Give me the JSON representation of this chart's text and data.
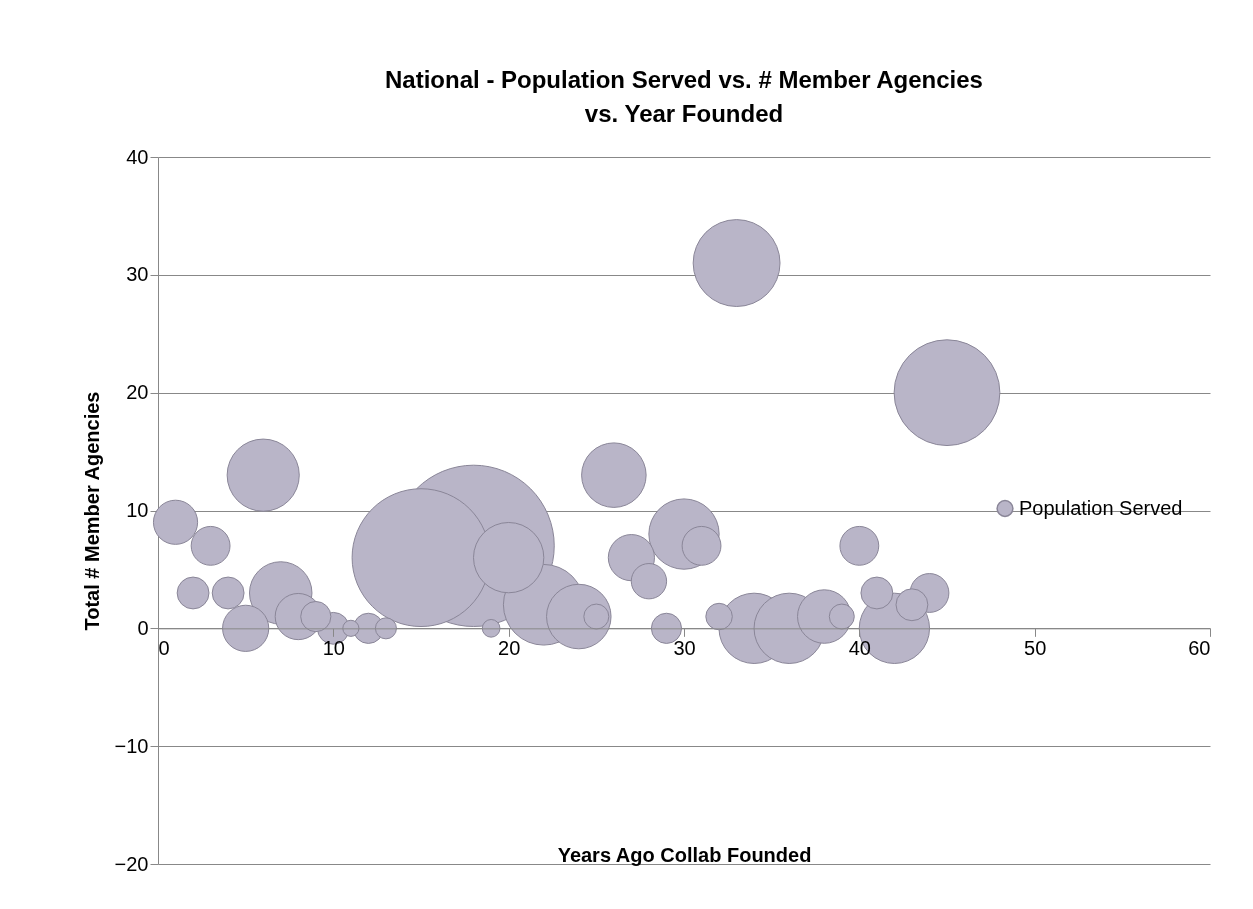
{
  "chart_data": {
    "type": "bubble",
    "title": "National - Population Served vs. # Member Agencies vs. Year Founded",
    "xlabel": "Years Ago Collab Founded",
    "ylabel": "Total # Member Agencies",
    "x": [
      1,
      3,
      2,
      4,
      5,
      6,
      7,
      8,
      9,
      10,
      11,
      12,
      13,
      15,
      18,
      19,
      20,
      22,
      24,
      25,
      26,
      27,
      28,
      29,
      30,
      31,
      32,
      33,
      34,
      36,
      38,
      39,
      40,
      41,
      42,
      43,
      44,
      45
    ],
    "series": [
      {
        "name": "Population Served",
        "color": "#b9b5c8",
        "values": [
          9,
          7,
          3,
          3,
          0,
          13,
          3,
          1,
          1,
          0,
          0,
          0,
          0,
          6,
          7,
          0,
          6,
          2,
          1,
          1,
          13,
          6,
          4,
          0,
          8,
          7,
          1,
          31,
          0,
          0,
          1,
          1,
          7,
          3,
          0,
          2,
          3,
          20
        ],
        "sizes": [
          0.075,
          0.058,
          0.039,
          0.039,
          0.082,
          0.2,
          0.15,
          0.082,
          0.035,
          0.039,
          0.01,
          0.035,
          0.017,
          0.73,
          1,
          0.012,
          0.19,
          0.25,
          0.16,
          0.024,
          0.16,
          0.082,
          0.048,
          0.035,
          0.19,
          0.058,
          0.027,
          0.29,
          0.19,
          0.19,
          0.11,
          0.024,
          0.058,
          0.039,
          0.19,
          0.039,
          0.058,
          0.43
        ]
      }
    ],
    "xlim": [
      0,
      60
    ],
    "xticks": [
      0,
      10,
      20,
      30,
      40,
      50,
      60
    ],
    "ylim": [
      -20,
      40
    ],
    "yticks": [
      -20,
      -10,
      0,
      10,
      20,
      30,
      40
    ],
    "grid": "y",
    "legend": "right"
  }
}
